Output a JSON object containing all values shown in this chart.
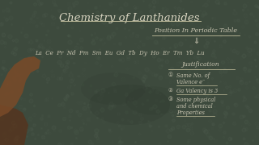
{
  "background_color": "#3d4a3d",
  "bg_dark": "#2a352a",
  "title": "Chemistry of Lanthanides",
  "title_color": "#d8d4c0",
  "title_fontsize": 9.5,
  "section_title": "Position In Periodic Table",
  "section_title_color": "#c8c4b0",
  "section_title_fontsize": 5.8,
  "arrow": "⇓",
  "arrow_fontsize": 7,
  "elements": "La  Ce  Pr  Nd  Pm  Sm  Eu  Gd  Tb  Dy  Ho  Er  Tm  Yb  Lu",
  "elements_color": "#c8c4b0",
  "elements_fontsize": 5.0,
  "justification_title": "Justification",
  "justification_color": "#c8c4b0",
  "justification_fontsize": 5.5,
  "point1_circle": "①",
  "point1": "Same No. of",
  "point1b": "Valence e⁻",
  "point2_circle": "②",
  "point2": "Ga Valency is 3",
  "point3_circle": "③",
  "point3": "Some physical",
  "point3b": "and chemical",
  "point3c": "Properties",
  "points_color": "#c8c4b0",
  "points_fontsize": 4.8,
  "underline_color": "#c0bc9a",
  "hand_color": "#7a4a28",
  "hand_dark": "#5a3018"
}
